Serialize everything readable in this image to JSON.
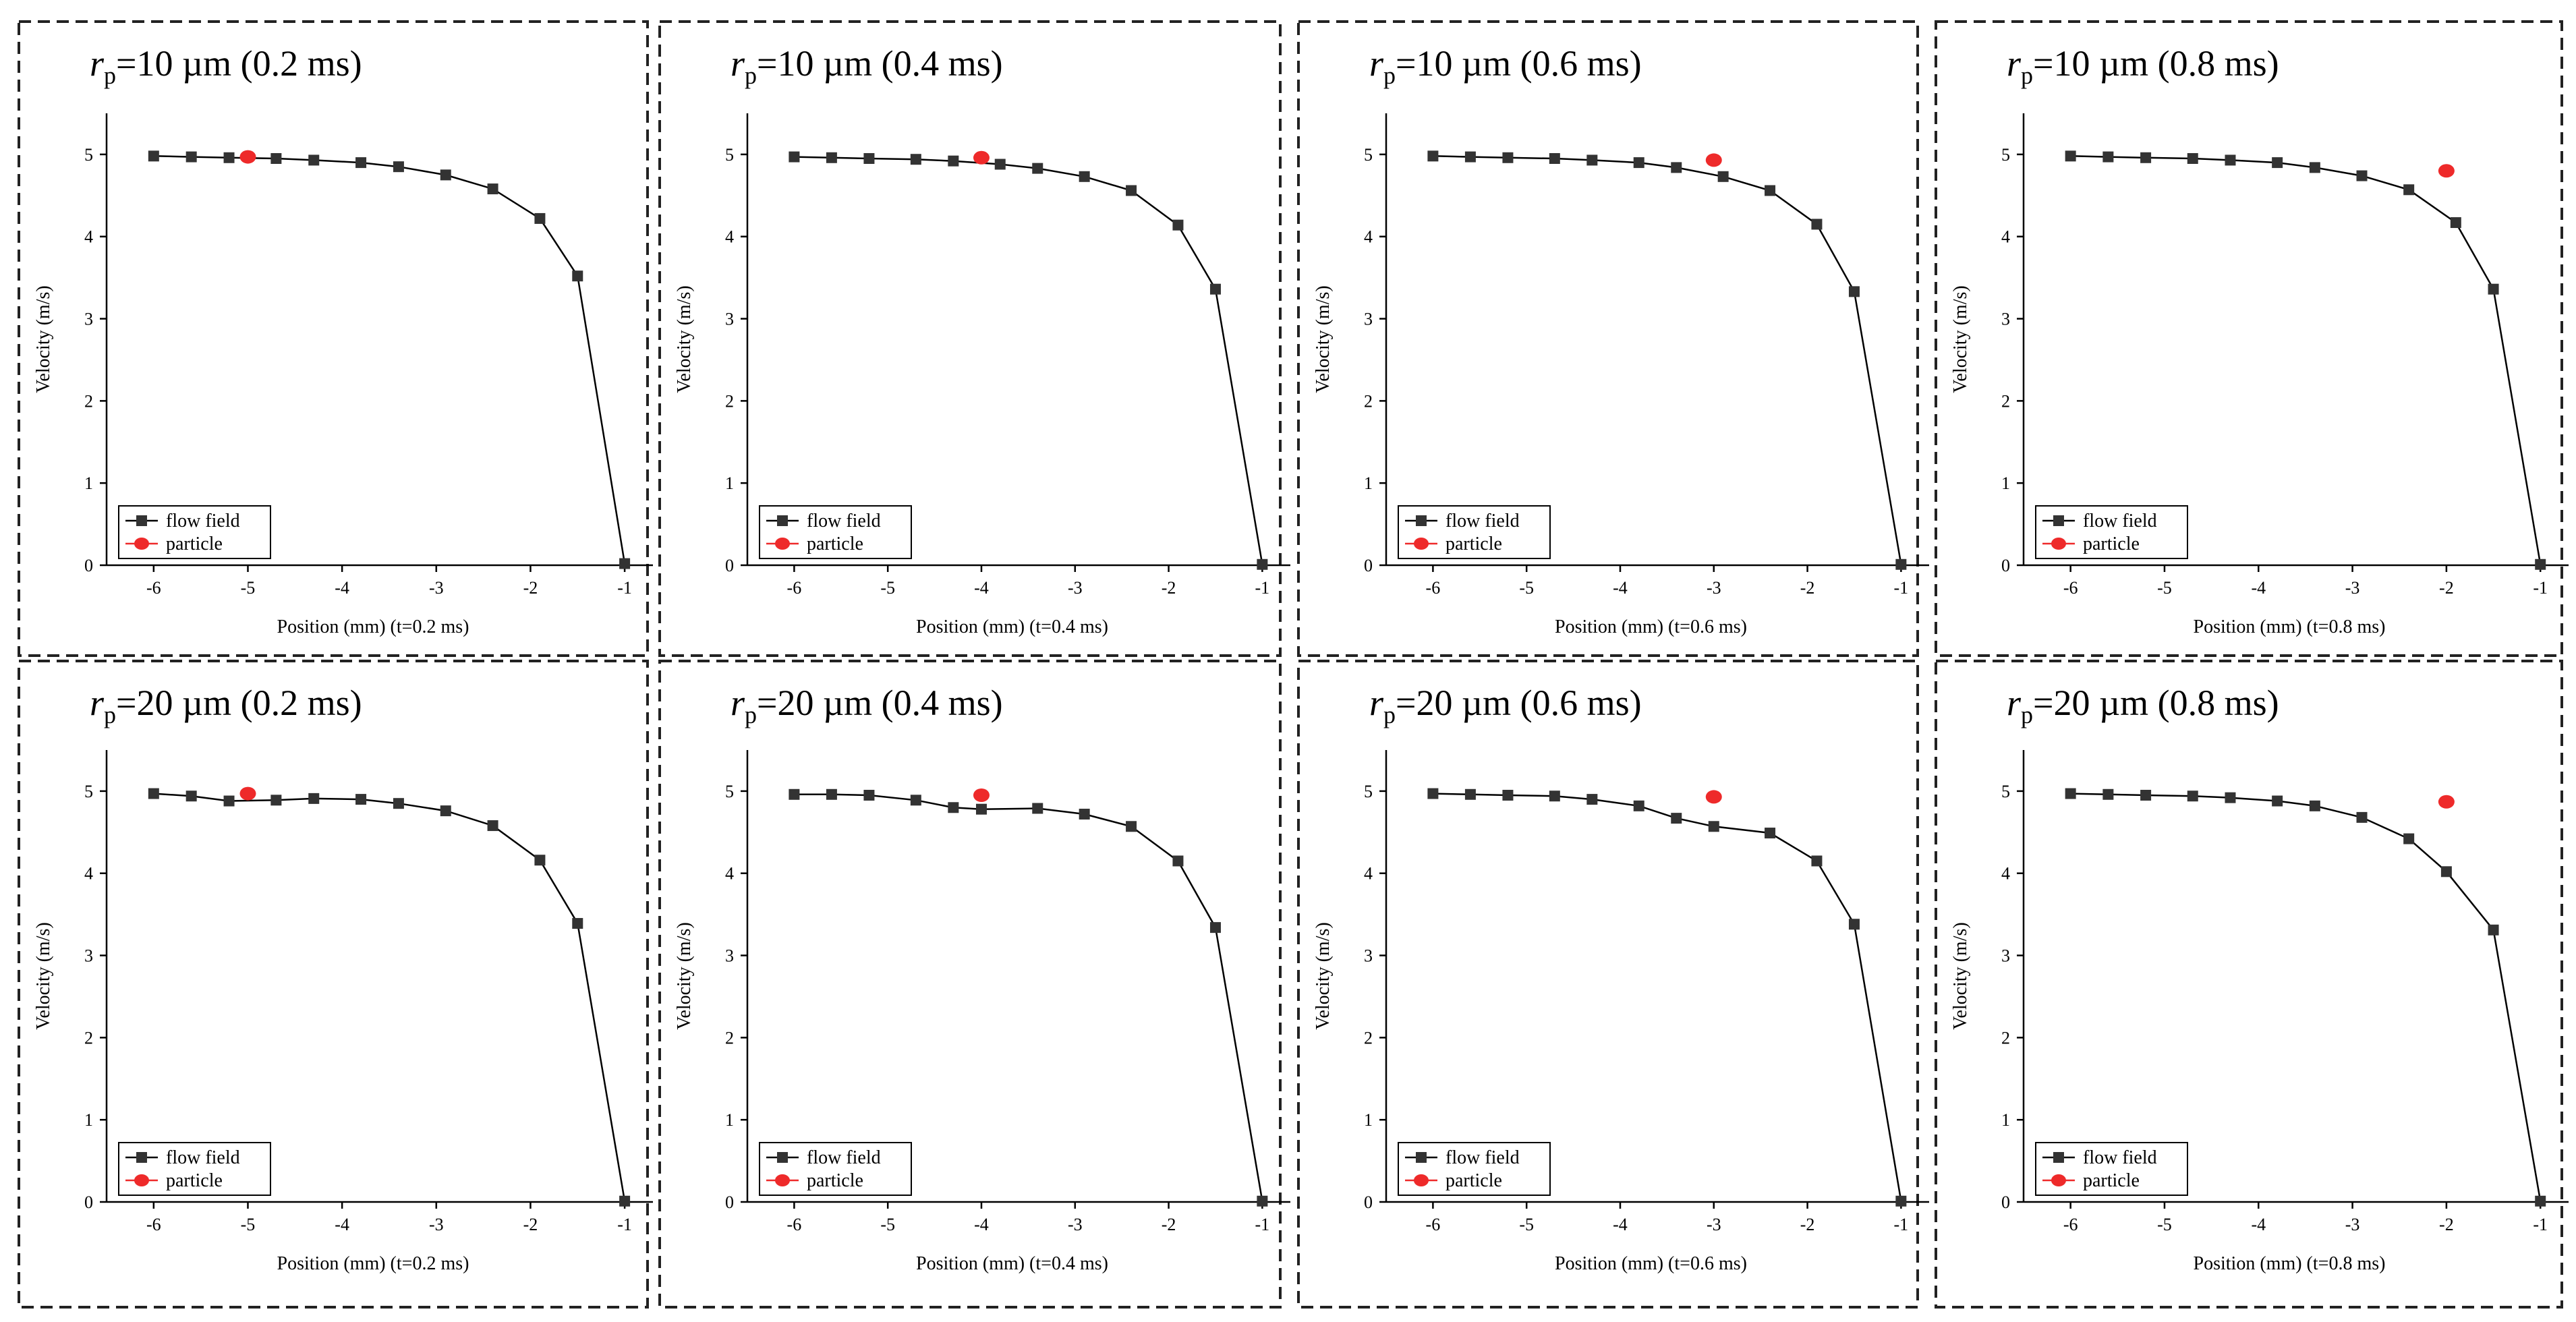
{
  "figure_title": "",
  "chart_data": [
    {
      "type": "line",
      "title": {
        "symbol": "r",
        "subscript": "p",
        "text": "=10 µm (0.2 ms)"
      },
      "xlabel": "Position (mm) (t=0.2 ms)",
      "ylabel": "Velocity (m/s)",
      "xlim": [
        -6.5,
        -0.7
      ],
      "ylim": [
        0,
        5.5
      ],
      "xticks": [
        -6,
        -5,
        -4,
        -3,
        -2,
        -1
      ],
      "yticks": [
        0,
        1,
        2,
        3,
        4,
        5
      ],
      "series": [
        {
          "name": "flow field",
          "x": [
            -6.0,
            -5.6,
            -5.2,
            -4.7,
            -4.3,
            -3.8,
            -3.4,
            -2.9,
            -2.4,
            -1.9,
            -1.5,
            -1.0
          ],
          "y": [
            4.98,
            4.97,
            4.96,
            4.95,
            4.93,
            4.9,
            4.85,
            4.75,
            4.58,
            4.22,
            3.52,
            0.02
          ]
        },
        {
          "name": "particle",
          "x": [
            -5.0
          ],
          "y": [
            4.97
          ]
        }
      ],
      "legend": {
        "flow": "flow field",
        "particle": "particle"
      }
    },
    {
      "type": "line",
      "title": {
        "symbol": "r",
        "subscript": "p",
        "text": "=10 µm (0.4 ms)"
      },
      "xlabel": "Position (mm) (t=0.4 ms)",
      "ylabel": "Velocity (m/s)",
      "xlim": [
        -6.5,
        -0.7
      ],
      "ylim": [
        0,
        5.5
      ],
      "xticks": [
        -6,
        -5,
        -4,
        -3,
        -2,
        -1
      ],
      "yticks": [
        0,
        1,
        2,
        3,
        4,
        5
      ],
      "series": [
        {
          "name": "flow field",
          "x": [
            -6.0,
            -5.6,
            -5.2,
            -4.7,
            -4.3,
            -3.8,
            -3.4,
            -2.9,
            -2.4,
            -1.9,
            -1.5,
            -1.0
          ],
          "y": [
            4.97,
            4.96,
            4.95,
            4.94,
            4.92,
            4.88,
            4.83,
            4.73,
            4.56,
            4.14,
            3.36,
            0.01
          ]
        },
        {
          "name": "particle",
          "x": [
            -4.0
          ],
          "y": [
            4.96
          ]
        }
      ],
      "legend": {
        "flow": "flow field",
        "particle": "particle"
      }
    },
    {
      "type": "line",
      "title": {
        "symbol": "r",
        "subscript": "p",
        "text": "=10 µm (0.6 ms)"
      },
      "xlabel": "Position (mm) (t=0.6 ms)",
      "ylabel": "Velocity (m/s)",
      "xlim": [
        -6.5,
        -0.7
      ],
      "ylim": [
        0,
        5.5
      ],
      "xticks": [
        -6,
        -5,
        -4,
        -3,
        -2,
        -1
      ],
      "yticks": [
        0,
        1,
        2,
        3,
        4,
        5
      ],
      "series": [
        {
          "name": "flow field",
          "x": [
            -6.0,
            -5.6,
            -5.2,
            -4.7,
            -4.3,
            -3.8,
            -3.4,
            -2.9,
            -2.4,
            -1.9,
            -1.5,
            -1.0
          ],
          "y": [
            4.98,
            4.97,
            4.96,
            4.95,
            4.93,
            4.9,
            4.84,
            4.73,
            4.56,
            4.15,
            3.33,
            0.01
          ]
        },
        {
          "name": "particle",
          "x": [
            -3.0
          ],
          "y": [
            4.93
          ]
        }
      ],
      "legend": {
        "flow": "flow field",
        "particle": "particle"
      }
    },
    {
      "type": "line",
      "title": {
        "symbol": "r",
        "subscript": "p",
        "text": "=10 µm (0.8 ms)"
      },
      "xlabel": "Position (mm) (t=0.8 ms)",
      "ylabel": "Velocity (m/s)",
      "xlim": [
        -6.5,
        -0.7
      ],
      "ylim": [
        0,
        5.5
      ],
      "xticks": [
        -6,
        -5,
        -4,
        -3,
        -2,
        -1
      ],
      "yticks": [
        0,
        1,
        2,
        3,
        4,
        5
      ],
      "series": [
        {
          "name": "flow field",
          "x": [
            -6.0,
            -5.6,
            -5.2,
            -4.7,
            -4.3,
            -3.8,
            -3.4,
            -2.9,
            -2.4,
            -1.9,
            -1.5,
            -1.0
          ],
          "y": [
            4.98,
            4.97,
            4.96,
            4.95,
            4.93,
            4.9,
            4.84,
            4.74,
            4.57,
            4.17,
            3.36,
            0.01
          ]
        },
        {
          "name": "particle",
          "x": [
            -2.0
          ],
          "y": [
            4.8
          ]
        }
      ],
      "legend": {
        "flow": "flow field",
        "particle": "particle"
      }
    },
    {
      "type": "line",
      "title": {
        "symbol": "r",
        "subscript": "p",
        "text": "=20 µm (0.2 ms)"
      },
      "xlabel": "Position (mm) (t=0.2 ms)",
      "ylabel": "Velocity (m/s)",
      "xlim": [
        -6.5,
        -0.7
      ],
      "ylim": [
        0,
        5.5
      ],
      "xticks": [
        -6,
        -5,
        -4,
        -3,
        -2,
        -1
      ],
      "yticks": [
        0,
        1,
        2,
        3,
        4,
        5
      ],
      "series": [
        {
          "name": "flow field",
          "x": [
            -6.0,
            -5.6,
            -5.2,
            -4.7,
            -4.3,
            -3.8,
            -3.4,
            -2.9,
            -2.4,
            -1.9,
            -1.5,
            -1.0
          ],
          "y": [
            4.97,
            4.94,
            4.88,
            4.89,
            4.91,
            4.9,
            4.85,
            4.76,
            4.58,
            4.16,
            3.39,
            0.01
          ]
        },
        {
          "name": "particle",
          "x": [
            -5.0
          ],
          "y": [
            4.97
          ]
        }
      ],
      "legend": {
        "flow": "flow field",
        "particle": "particle"
      }
    },
    {
      "type": "line",
      "title": {
        "symbol": "r",
        "subscript": "p",
        "text": "=20 µm (0.4 ms)"
      },
      "xlabel": "Position (mm) (t=0.4 ms)",
      "ylabel": "Velocity (m/s)",
      "xlim": [
        -6.5,
        -0.7
      ],
      "ylim": [
        0,
        5.5
      ],
      "xticks": [
        -6,
        -5,
        -4,
        -3,
        -2,
        -1
      ],
      "yticks": [
        0,
        1,
        2,
        3,
        4,
        5
      ],
      "series": [
        {
          "name": "flow field",
          "x": [
            -6.0,
            -5.6,
            -5.2,
            -4.7,
            -4.3,
            -4.0,
            -3.4,
            -2.9,
            -2.4,
            -1.9,
            -1.5,
            -1.0
          ],
          "y": [
            4.96,
            4.96,
            4.95,
            4.89,
            4.8,
            4.78,
            4.79,
            4.72,
            4.57,
            4.15,
            3.34,
            0.01
          ]
        },
        {
          "name": "particle",
          "x": [
            -4.0
          ],
          "y": [
            4.95
          ]
        }
      ],
      "legend": {
        "flow": "flow field",
        "particle": "particle"
      }
    },
    {
      "type": "line",
      "title": {
        "symbol": "r",
        "subscript": "p",
        "text": "=20 µm (0.6 ms)"
      },
      "xlabel": "Position (mm) (t=0.6 ms)",
      "ylabel": "Velocity (m/s)",
      "xlim": [
        -6.5,
        -0.7
      ],
      "ylim": [
        0,
        5.5
      ],
      "xticks": [
        -6,
        -5,
        -4,
        -3,
        -2,
        -1
      ],
      "yticks": [
        0,
        1,
        2,
        3,
        4,
        5
      ],
      "series": [
        {
          "name": "flow field",
          "x": [
            -6.0,
            -5.6,
            -5.2,
            -4.7,
            -4.3,
            -3.8,
            -3.4,
            -3.0,
            -2.4,
            -1.9,
            -1.5,
            -1.0
          ],
          "y": [
            4.97,
            4.96,
            4.95,
            4.94,
            4.9,
            4.82,
            4.67,
            4.57,
            4.49,
            4.15,
            3.38,
            0.01
          ]
        },
        {
          "name": "particle",
          "x": [
            -3.0
          ],
          "y": [
            4.93
          ]
        }
      ],
      "legend": {
        "flow": "flow field",
        "particle": "particle"
      }
    },
    {
      "type": "line",
      "title": {
        "symbol": "r",
        "subscript": "p",
        "text": "=20 µm (0.8 ms)"
      },
      "xlabel": "Position (mm) (t=0.8 ms)",
      "ylabel": "Velocity (m/s)",
      "xlim": [
        -6.5,
        -0.7
      ],
      "ylim": [
        0,
        5.5
      ],
      "xticks": [
        -6,
        -5,
        -4,
        -3,
        -2,
        -1
      ],
      "yticks": [
        0,
        1,
        2,
        3,
        4,
        5
      ],
      "series": [
        {
          "name": "flow field",
          "x": [
            -6.0,
            -5.6,
            -5.2,
            -4.7,
            -4.3,
            -3.8,
            -3.4,
            -2.9,
            -2.4,
            -2.0,
            -1.5,
            -1.0
          ],
          "y": [
            4.97,
            4.96,
            4.95,
            4.94,
            4.92,
            4.88,
            4.82,
            4.68,
            4.42,
            4.02,
            3.31,
            0.01
          ]
        },
        {
          "name": "particle",
          "x": [
            -2.0
          ],
          "y": [
            4.87
          ]
        }
      ],
      "legend": {
        "flow": "flow field",
        "particle": "particle"
      }
    }
  ]
}
